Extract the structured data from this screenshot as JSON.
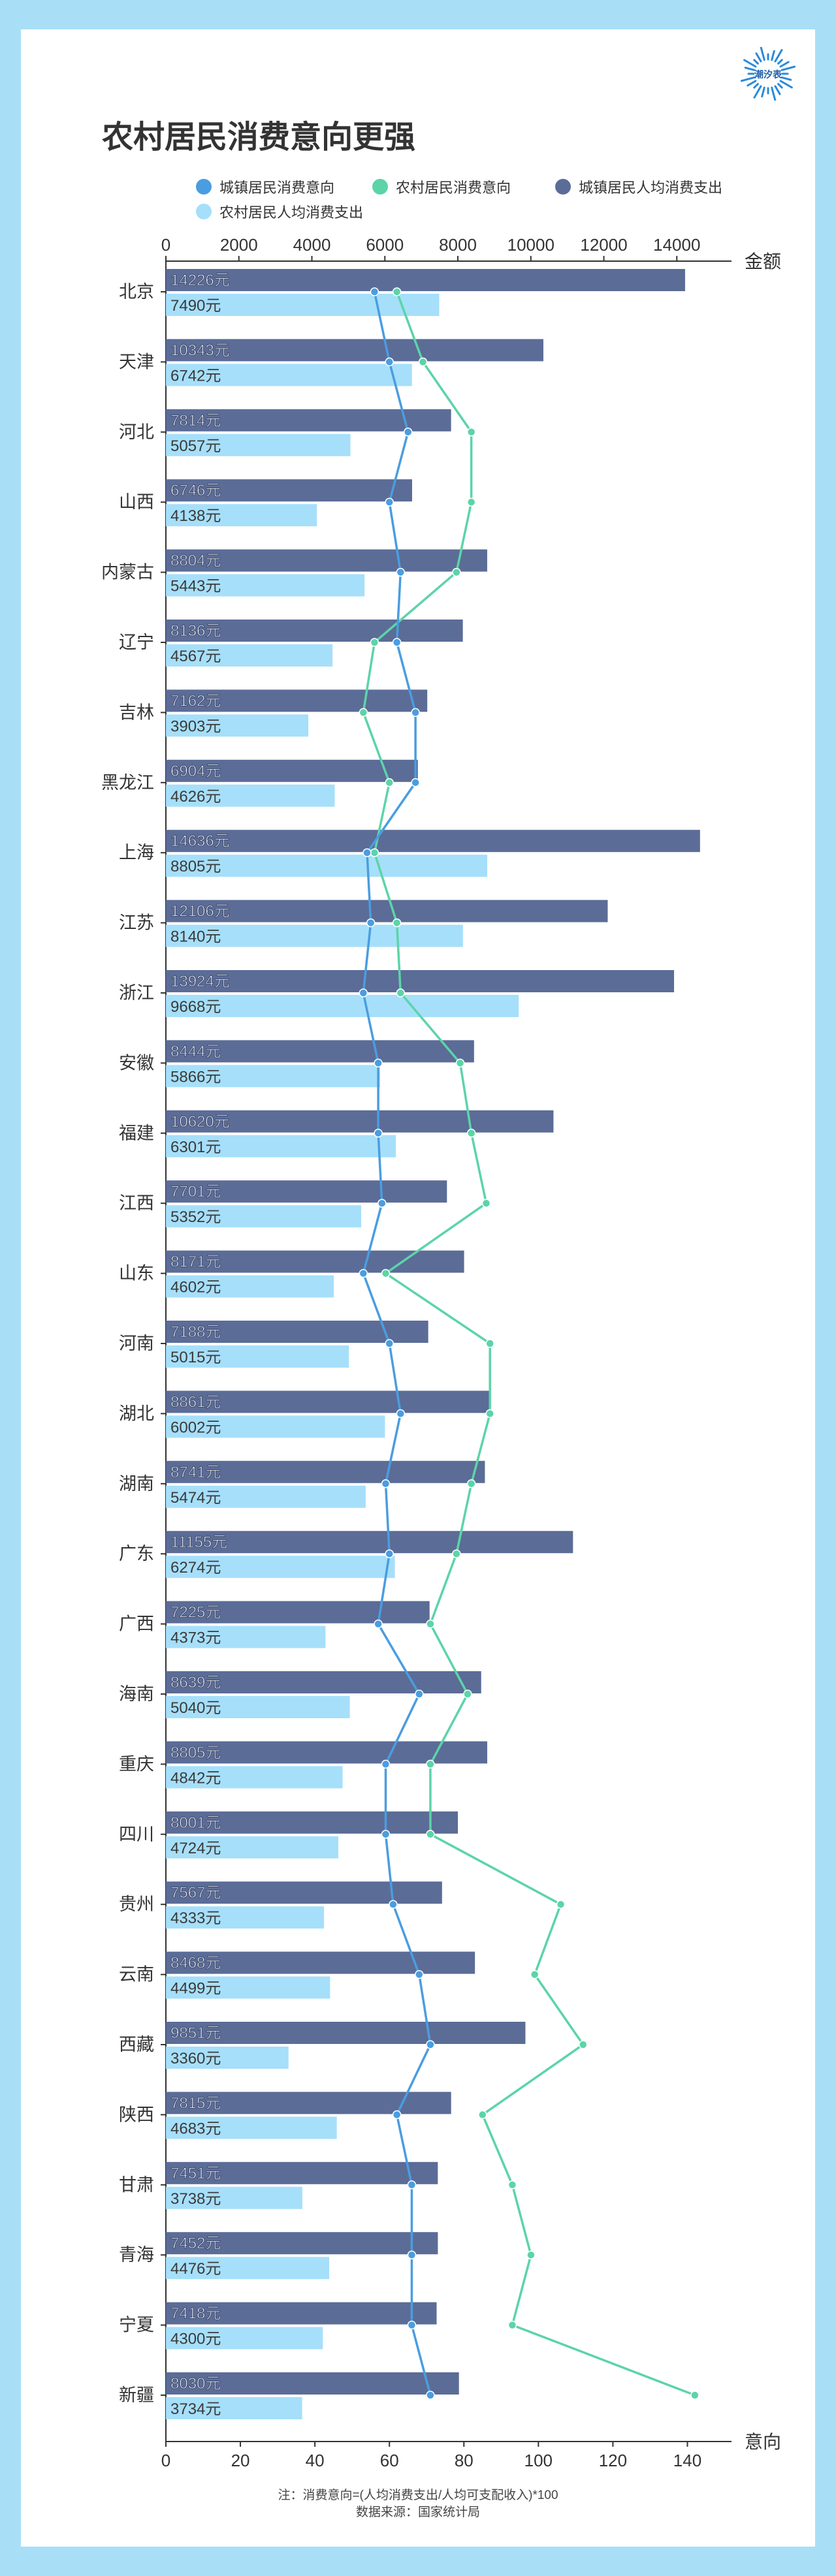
{
  "title": "农村居民消费意向更强",
  "logo": {
    "text": "潮汐表",
    "color": "#2b8ad8"
  },
  "legend": [
    {
      "label": "城镇居民消费意向",
      "color": "#4a9de0"
    },
    {
      "label": "农村居民消费意向",
      "color": "#5cd4a8"
    },
    {
      "label": "城镇居民人均消费支出",
      "color": "#5b6c97"
    },
    {
      "label": "农村居民人均消费支出",
      "color": "#a6dffa"
    }
  ],
  "chart_data": {
    "type": "bar",
    "categories": [
      "北京",
      "天津",
      "河北",
      "山西",
      "内蒙古",
      "辽宁",
      "吉林",
      "黑龙江",
      "上海",
      "江苏",
      "浙江",
      "安徽",
      "福建",
      "江西",
      "山东",
      "河南",
      "湖北",
      "湖南",
      "广东",
      "广西",
      "海南",
      "重庆",
      "四川",
      "贵州",
      "云南",
      "西藏",
      "陕西",
      "甘肃",
      "青海",
      "宁夏",
      "新疆"
    ],
    "top_axis": {
      "label": "金额",
      "range": [
        0,
        14800
      ],
      "ticks": [
        0,
        2000,
        4000,
        6000,
        8000,
        10000,
        12000,
        14000
      ]
    },
    "bottom_axis": {
      "label": "意向",
      "range": [
        0,
        145
      ],
      "ticks": [
        0,
        20,
        40,
        60,
        80,
        100,
        120,
        140
      ]
    },
    "unit_suffix": "元",
    "series": [
      {
        "name": "城镇居民人均消费支出",
        "kind": "bar",
        "color": "#5b6c97",
        "values": [
          14226,
          10343,
          7814,
          6746,
          8804,
          8136,
          7162,
          6904,
          14636,
          12106,
          13924,
          8444,
          10620,
          7701,
          8171,
          7188,
          8861,
          8741,
          11155,
          7225,
          8639,
          8805,
          8001,
          7567,
          8468,
          9851,
          7815,
          7451,
          7452,
          7418,
          8030
        ]
      },
      {
        "name": "农村居民人均消费支出",
        "kind": "bar",
        "color": "#a6dffa",
        "values": [
          7490,
          6742,
          5057,
          4138,
          5443,
          4567,
          3903,
          4626,
          8805,
          8140,
          9668,
          5866,
          6301,
          5352,
          4602,
          5015,
          6002,
          5474,
          6274,
          4373,
          5040,
          4842,
          4724,
          4333,
          4499,
          3360,
          4683,
          3738,
          4476,
          4300,
          3734
        ]
      },
      {
        "name": "城镇居民消费意向",
        "kind": "line",
        "color": "#4a9de0",
        "values": [
          56,
          60,
          65,
          60,
          63,
          62,
          67,
          67,
          54,
          55,
          53,
          57,
          57,
          58,
          53,
          60,
          63,
          59,
          60,
          57,
          68,
          59,
          59,
          61,
          68,
          71,
          62,
          66,
          66,
          66,
          71
        ]
      },
      {
        "name": "农村居民消费意向",
        "kind": "line",
        "color": "#5cd4a8",
        "values": [
          62,
          69,
          82,
          82,
          78,
          56,
          53,
          60,
          56,
          62,
          63,
          79,
          82,
          86,
          59,
          87,
          87,
          82,
          78,
          71,
          81,
          71,
          71,
          106,
          99,
          112,
          85,
          93,
          98,
          93,
          142
        ]
      }
    ]
  },
  "footer": {
    "note": "注：消费意向=(人均消费支出/人均可支配收入)*100",
    "source": "数据来源：国家统计局"
  }
}
